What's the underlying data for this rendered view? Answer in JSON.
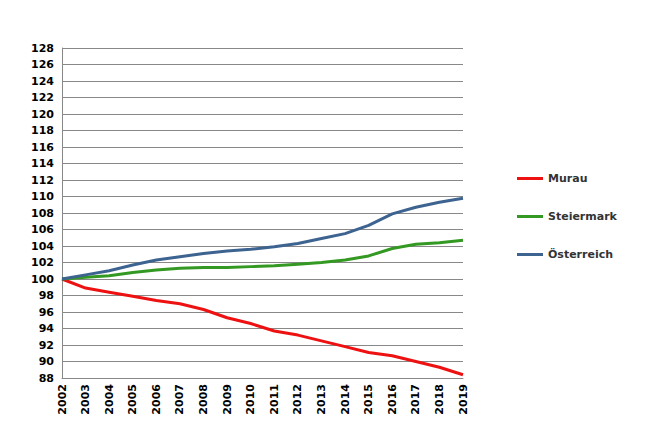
{
  "chart_data": {
    "type": "line",
    "categories": [
      "2002",
      "2003",
      "2004",
      "2005",
      "2006",
      "2007",
      "2008",
      "2009",
      "2010",
      "2011",
      "2012",
      "2013",
      "2014",
      "2015",
      "2016",
      "2017",
      "2018",
      "2019"
    ],
    "series": [
      {
        "name": "Murau",
        "color": "#ee1111",
        "values": [
          100,
          98.9,
          98.4,
          97.9,
          97.4,
          97.0,
          96.3,
          95.3,
          94.6,
          93.7,
          93.2,
          92.5,
          91.8,
          91.1,
          90.7,
          90.0,
          89.3,
          88.4
        ]
      },
      {
        "name": "Steiermark",
        "color": "#339922",
        "values": [
          100,
          100.2,
          100.4,
          100.8,
          101.1,
          101.3,
          101.4,
          101.4,
          101.5,
          101.6,
          101.8,
          102.0,
          102.3,
          102.8,
          103.7,
          104.2,
          104.4,
          104.7
        ]
      },
      {
        "name": "Österreich",
        "color": "#3d6390",
        "values": [
          100,
          100.5,
          101.0,
          101.7,
          102.3,
          102.7,
          103.1,
          103.4,
          103.6,
          103.9,
          104.3,
          104.9,
          105.5,
          106.5,
          107.9,
          108.7,
          109.3,
          109.8
        ]
      }
    ],
    "ylim": [
      88,
      128
    ],
    "yticks": [
      88,
      90,
      92,
      94,
      96,
      98,
      100,
      102,
      104,
      106,
      108,
      110,
      112,
      114,
      116,
      118,
      120,
      122,
      124,
      126,
      128
    ],
    "grid": true,
    "legend": "right"
  }
}
